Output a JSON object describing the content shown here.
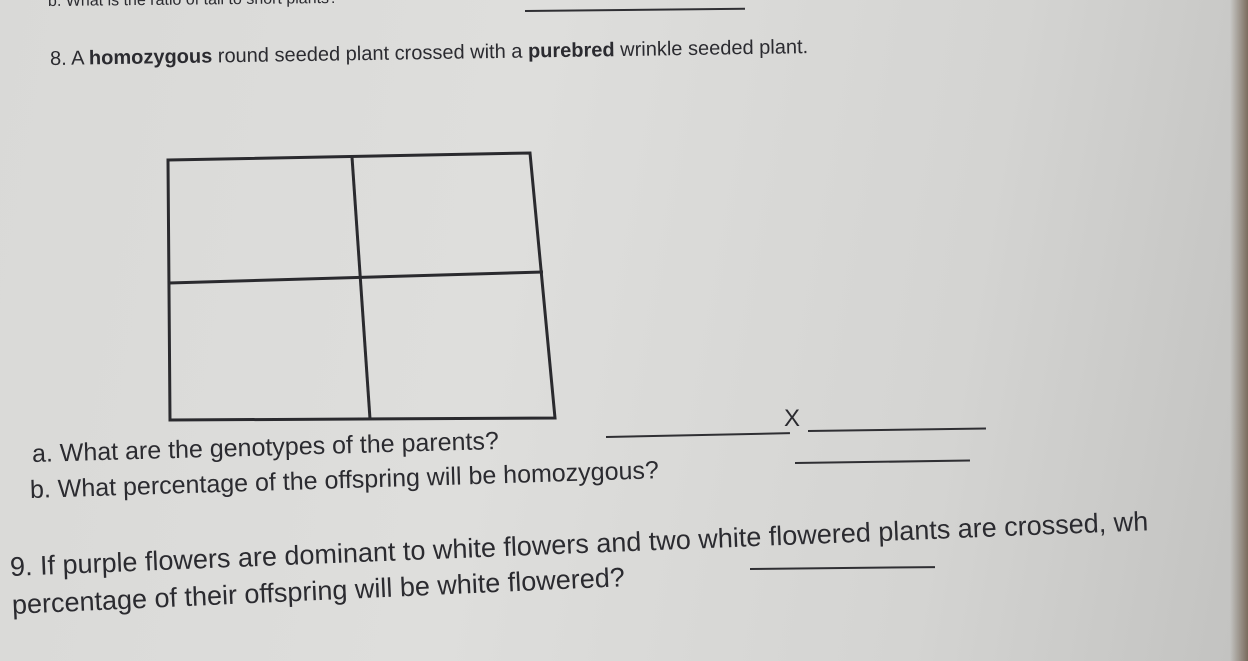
{
  "top_line": "b. What is the ratio of tall to short plants?",
  "question_8": {
    "segments": [
      {
        "text": "8. A "
      },
      {
        "text": "homozygous",
        "bold": true
      },
      {
        "text": " round seeded plant crossed with a "
      },
      {
        "text": "purebred",
        "bold": true
      },
      {
        "text": " wrinkle seeded plant."
      }
    ],
    "part_a": "a. What are the genotypes of the parents?",
    "cross_symbol": "X",
    "part_b": "b. What percentage of the offspring will be homozygous?"
  },
  "question_9": {
    "line_1": "9. If purple flowers are dominant to white flowers and two white flowered plants are crossed, wh",
    "line_2": "percentage of their offspring will be white flowered?"
  }
}
